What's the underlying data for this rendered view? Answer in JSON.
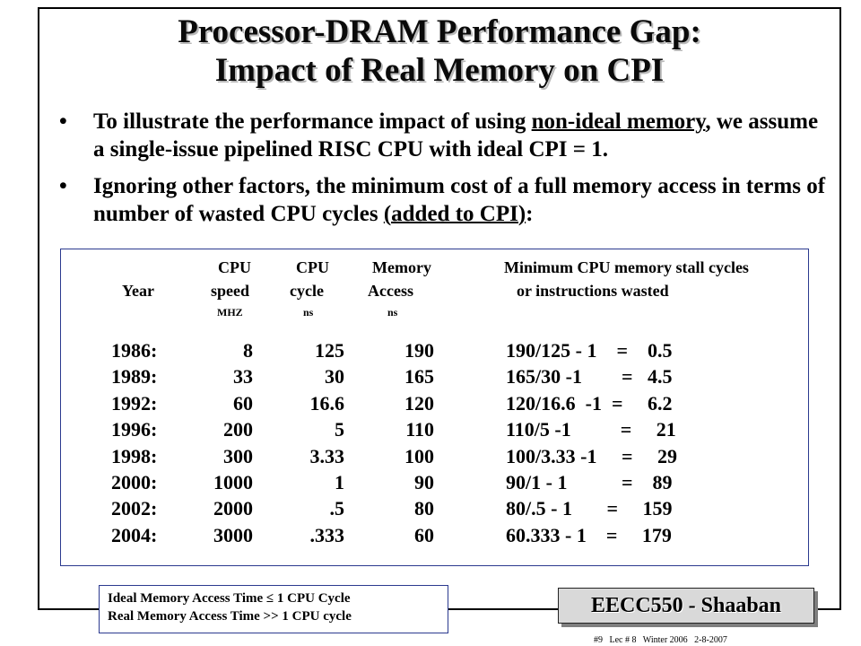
{
  "title": {
    "line1": "Processor-DRAM  Performance Gap:",
    "line2": "Impact of Real Memory on CPI"
  },
  "bullets": [
    {
      "pre": "To illustrate the performance impact of using ",
      "underlined": "non-ideal memory",
      "post": ", we assume a single-issue pipelined  RISC CPU with ideal CPI = 1."
    },
    {
      "pre": "Ignoring other factors, the minimum cost of a full memory access in terms of number of wasted CPU cycles ",
      "underlined": "(added to CPI)",
      "post": ":"
    }
  ],
  "bullet_symbol": "•",
  "table": {
    "headers": {
      "cpu1": "CPU",
      "cpu2": "CPU",
      "memory": "Memory",
      "min_stall": "Minimum CPU memory stall cycles",
      "year": "Year",
      "speed": "speed",
      "cycle": "cycle",
      "access": "Access",
      "or_wasted": "or instructions wasted",
      "mhz": "MHZ",
      "ns1": "ns",
      "ns2": "ns"
    },
    "rows": [
      {
        "year": "1986:",
        "speed": "8",
        "cycle": "125",
        "access": "190",
        "calc": "190/125 - 1    =    0.5"
      },
      {
        "year": "1989:",
        "speed": "33",
        "cycle": "30",
        "access": "165",
        "calc": "165/30 -1        =   4.5"
      },
      {
        "year": "1992:",
        "speed": "60",
        "cycle": "16.6",
        "access": "120",
        "calc": "120/16.6  -1  =     6.2"
      },
      {
        "year": "1996:",
        "speed": "200",
        "cycle": "5",
        "access": "110",
        "calc": "110/5 -1          =     21"
      },
      {
        "year": "1998:",
        "speed": "300",
        "cycle": "3.33",
        "access": "100",
        "calc": "100/3.33 -1     =     29"
      },
      {
        "year": "2000:",
        "speed": "1000",
        "cycle": "1",
        "access": "90",
        "calc": "90/1 - 1           =    89"
      },
      {
        "year": "2002:",
        "speed": "2000",
        "cycle": ".5",
        "access": "80",
        "calc": "80/.5 - 1       =     159"
      },
      {
        "year": "2004:",
        "speed": "3000",
        "cycle": ".333",
        "access": "60",
        "calc": "60.333 - 1    =     179"
      }
    ]
  },
  "note": {
    "line1": "Ideal Memory Access Time ≤ 1 CPU Cycle",
    "line2": "Real Memory Access Time >> 1 CPU cycle"
  },
  "brand": "EECC550 - Shaaban",
  "footer": "#9   Lec # 8   Winter 2006   2-8-2007"
}
